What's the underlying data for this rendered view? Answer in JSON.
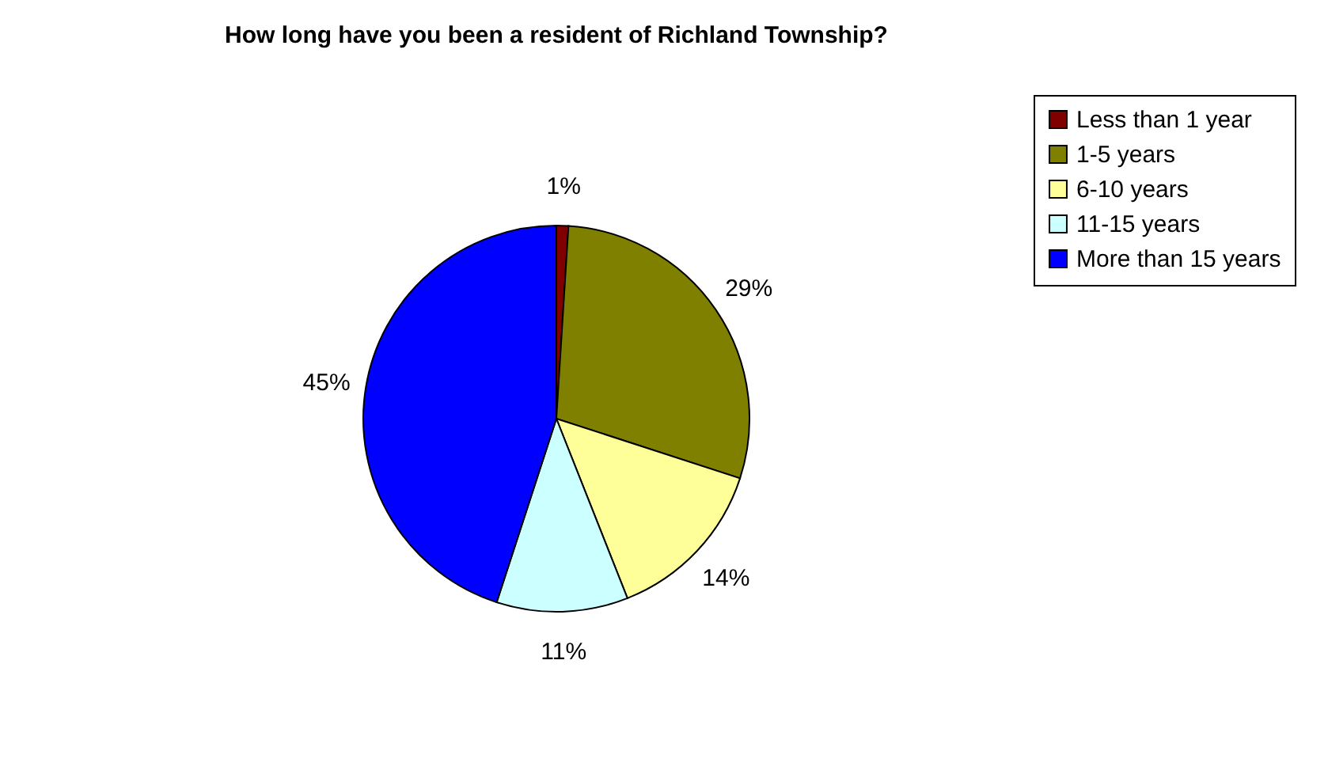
{
  "chart_data": {
    "type": "pie",
    "title": "How long have you been a resident of Richland Township?",
    "categories": [
      "Less than 1 year",
      "1-5 years",
      "6-10 years",
      "11-15 years",
      "More than 15 years"
    ],
    "values": [
      1,
      29,
      14,
      11,
      45
    ],
    "colors": [
      "#800000",
      "#808000",
      "#ffff99",
      "#ccffff",
      "#0000ff"
    ],
    "value_labels": [
      "1%",
      "29%",
      "14%",
      "11%",
      "45%"
    ],
    "legend": "right"
  }
}
